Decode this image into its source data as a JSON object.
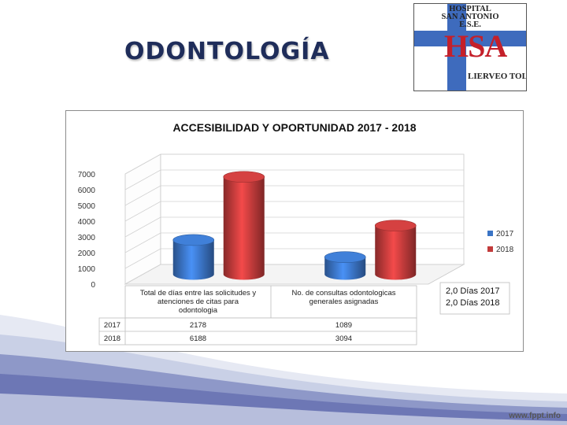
{
  "slide": {
    "title": "ODONTOLOGÍA",
    "footer_url": "www.fppt.info"
  },
  "logo": {
    "line1": "HOSPITAL",
    "line2": "SAN ANTONIO",
    "line3": "E.S.E.",
    "mark": "HSA",
    "city": "LIERVEO TOLIMA"
  },
  "chart_data": {
    "type": "bar",
    "title": "ACCESIBILIDAD  Y OPORTUNIDAD 2017 - 2018",
    "categories": [
      [
        "Total de días entre las solicitudes y",
        "atenciones de citas para",
        "odontologia"
      ],
      [
        "No. de consultas odontologicas",
        "generales asignadas"
      ]
    ],
    "series": [
      {
        "name": "2017",
        "values": [
          2178,
          1089
        ],
        "color": "#3a74c5"
      },
      {
        "name": "2018",
        "values": [
          6188,
          3094
        ],
        "color": "#c23b3b"
      }
    ],
    "yticks": [
      "0",
      "1000",
      "2000",
      "3000",
      "4000",
      "5000",
      "6000",
      "7000"
    ],
    "ylim": [
      0,
      7000
    ],
    "grid": true,
    "legend_position": "right",
    "table": [
      {
        "label": "2017",
        "values": [
          "2178",
          "1089"
        ]
      },
      {
        "label": "2018",
        "values": [
          "6188",
          "3094"
        ]
      }
    ],
    "annotation": [
      "2,0 Días 2017",
      "2,0 Días 2018"
    ]
  }
}
